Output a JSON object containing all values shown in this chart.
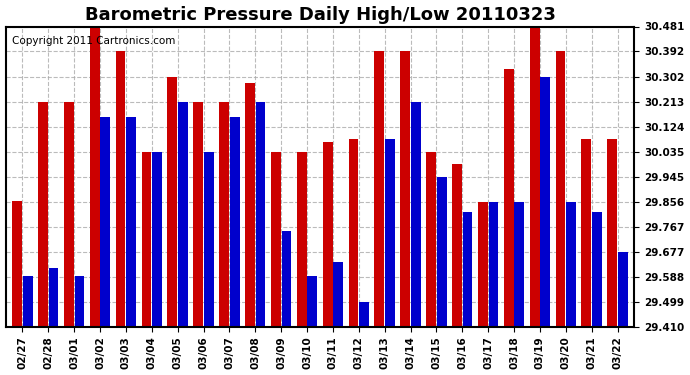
{
  "title": "Barometric Pressure Daily High/Low 20110323",
  "copyright": "Copyright 2011 Cartronics.com",
  "dates": [
    "02/27",
    "02/28",
    "03/01",
    "03/02",
    "03/03",
    "03/04",
    "03/05",
    "03/06",
    "03/07",
    "03/08",
    "03/09",
    "03/10",
    "03/11",
    "03/12",
    "03/13",
    "03/14",
    "03/15",
    "03/16",
    "03/17",
    "03/18",
    "03/19",
    "03/20",
    "03/21",
    "03/22"
  ],
  "highs": [
    29.86,
    30.213,
    30.213,
    30.481,
    30.392,
    30.035,
    30.302,
    30.213,
    30.213,
    30.28,
    30.035,
    30.035,
    30.07,
    30.08,
    30.392,
    30.392,
    30.035,
    29.99,
    29.856,
    30.33,
    30.481,
    30.392,
    30.08,
    30.08
  ],
  "lows": [
    29.59,
    29.62,
    29.59,
    30.16,
    30.16,
    30.035,
    30.213,
    30.035,
    30.16,
    30.213,
    29.75,
    29.59,
    29.64,
    29.499,
    30.08,
    30.213,
    29.945,
    29.82,
    29.856,
    29.856,
    30.302,
    29.856,
    29.82,
    29.677
  ],
  "high_color": "#cc0000",
  "low_color": "#0000cc",
  "ylim_min": 29.41,
  "ylim_max": 30.481,
  "yticks": [
    29.41,
    29.499,
    29.588,
    29.677,
    29.767,
    29.856,
    29.945,
    30.035,
    30.124,
    30.213,
    30.302,
    30.392,
    30.481
  ],
  "background_color": "#ffffff",
  "plot_bg_color": "#ffffff",
  "grid_color": "#aaaaaa",
  "title_fontsize": 13,
  "copyright_fontsize": 7.5
}
